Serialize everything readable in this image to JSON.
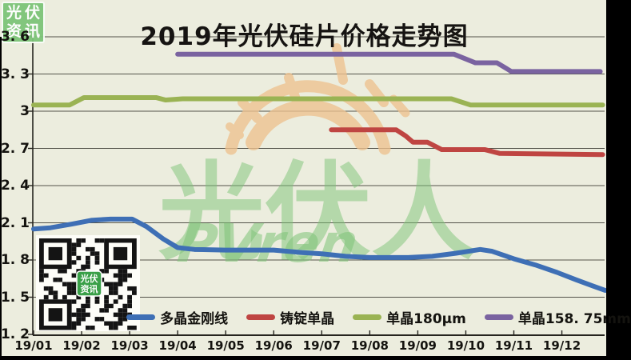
{
  "page": {
    "background": "#ecedde",
    "frame_color": "#000000"
  },
  "title": {
    "text": "2019年光伏硅片价格走势图",
    "color": "#161412"
  },
  "stamp": {
    "line1": "光伏",
    "line2": "资讯",
    "bg": "#7cc478"
  },
  "watermark": {
    "cn": "光伏人",
    "en": "PVren",
    "text_color": "#7ec478",
    "sun_color": "#eec28f"
  },
  "qr": {
    "label1": "光伏",
    "label2": "资讯",
    "badge_color": "#3aa048"
  },
  "axes": {
    "y": {
      "labels": [
        {
          "text": "3. 6",
          "value": 3.6
        },
        {
          "text": "3. 3",
          "value": 3.3
        },
        {
          "text": "3",
          "value": 3.0
        },
        {
          "text": "2. 7",
          "value": 2.7
        },
        {
          "text": "2. 4",
          "value": 2.4
        },
        {
          "text": "2. 1",
          "value": 2.1
        },
        {
          "text": "1. 8",
          "value": 1.8
        },
        {
          "text": "1. 5",
          "value": 1.5
        },
        {
          "text": "1. 2",
          "value": 1.2
        }
      ]
    },
    "x": {
      "labels": [
        "19/01",
        "19/02",
        "19/03",
        "19/04",
        "19/05",
        "19/06",
        "19/07",
        "19/08",
        "19/09",
        "19/10",
        "19/11",
        "19/12"
      ]
    }
  },
  "chart_data": {
    "type": "line",
    "title": "2019年光伏硅片价格走势图",
    "xlabel": "",
    "ylabel": "",
    "x_unit": "months from 19/01 tick",
    "x_tick_labels": [
      "19/01",
      "19/02",
      "19/03",
      "19/04",
      "19/05",
      "19/06",
      "19/07",
      "19/08",
      "19/09",
      "19/10",
      "19/11",
      "19/12"
    ],
    "ylim": [
      1.2,
      3.6
    ],
    "y_ticks": [
      1.2,
      1.5,
      1.8,
      2.1,
      2.4,
      2.7,
      3.0,
      3.3,
      3.6
    ],
    "grid": "horizontal",
    "legend_position": "bottom",
    "series": [
      {
        "name": "多晶金刚线",
        "color": "#3e6fb5",
        "points": [
          [
            0,
            2.05
          ],
          [
            0.35,
            2.06
          ],
          [
            0.8,
            2.09
          ],
          [
            1.2,
            2.12
          ],
          [
            1.6,
            2.13
          ],
          [
            2.05,
            2.13
          ],
          [
            2.35,
            2.07
          ],
          [
            2.7,
            1.97
          ],
          [
            3.0,
            1.9
          ],
          [
            3.35,
            1.885
          ],
          [
            4.0,
            1.88
          ],
          [
            5.0,
            1.88
          ],
          [
            5.6,
            1.86
          ],
          [
            6.0,
            1.85
          ],
          [
            6.5,
            1.83
          ],
          [
            7.0,
            1.82
          ],
          [
            7.8,
            1.82
          ],
          [
            8.3,
            1.83
          ],
          [
            8.8,
            1.855
          ],
          [
            9.3,
            1.885
          ],
          [
            9.55,
            1.87
          ],
          [
            10.0,
            1.81
          ],
          [
            10.45,
            1.76
          ],
          [
            10.9,
            1.7
          ],
          [
            11.3,
            1.64
          ],
          [
            11.65,
            1.59
          ],
          [
            11.9,
            1.555
          ]
        ]
      },
      {
        "name": "铸锭单晶",
        "color": "#bf4542",
        "points": [
          [
            6.2,
            2.85
          ],
          [
            7.55,
            2.85
          ],
          [
            7.75,
            2.8
          ],
          [
            7.9,
            2.75
          ],
          [
            8.2,
            2.75
          ],
          [
            8.5,
            2.69
          ],
          [
            9.4,
            2.69
          ],
          [
            9.7,
            2.66
          ],
          [
            11.85,
            2.65
          ]
        ]
      },
      {
        "name": "单晶180µm",
        "color": "#9ab353",
        "points": [
          [
            0,
            3.05
          ],
          [
            0.75,
            3.05
          ],
          [
            1.05,
            3.11
          ],
          [
            2.55,
            3.11
          ],
          [
            2.75,
            3.09
          ],
          [
            3.1,
            3.1
          ],
          [
            8.7,
            3.1
          ],
          [
            9.1,
            3.05
          ],
          [
            11.85,
            3.05
          ]
        ]
      },
      {
        "name": "单晶158. 75mm",
        "color": "#7a63a0",
        "points": [
          [
            3.0,
            3.46
          ],
          [
            8.75,
            3.46
          ],
          [
            9.2,
            3.39
          ],
          [
            9.65,
            3.39
          ],
          [
            9.95,
            3.32
          ],
          [
            11.8,
            3.32
          ]
        ]
      }
    ]
  }
}
